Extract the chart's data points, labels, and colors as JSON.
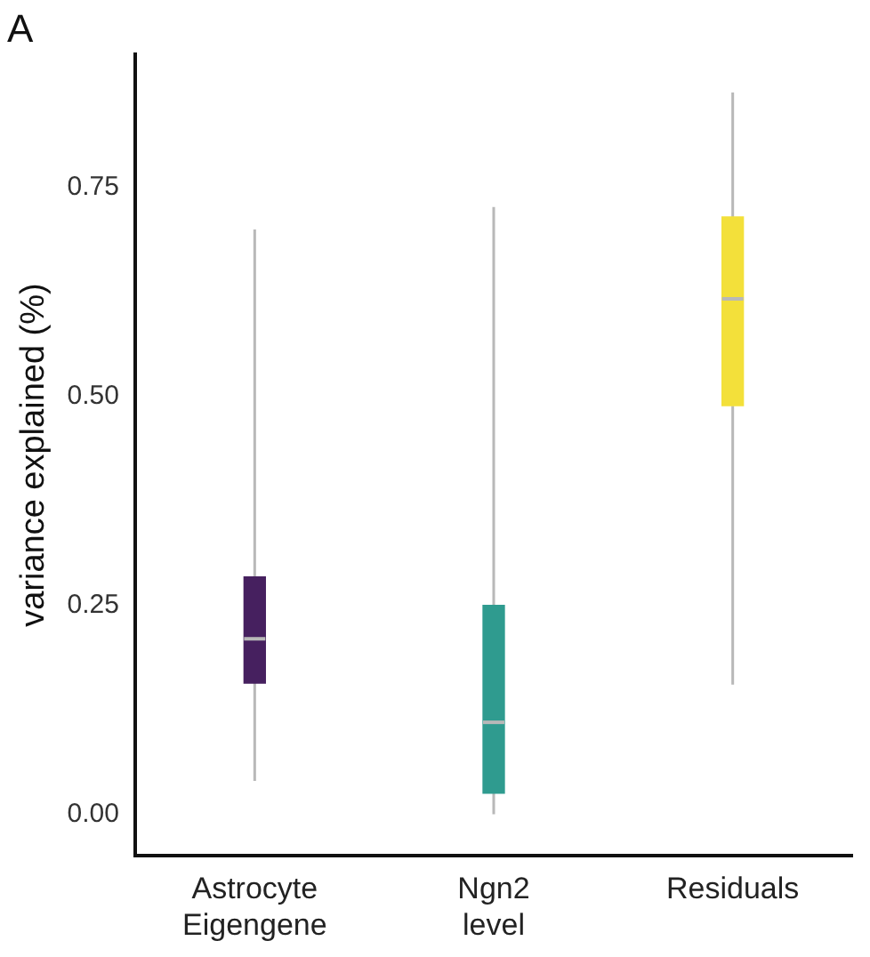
{
  "chart_data": {
    "type": "box",
    "title": "A",
    "ylabel": "variance explained (%)",
    "categories": [
      "Astrocyte Eigengene",
      "Ngn2 level",
      "Residuals"
    ],
    "boxes": [
      {
        "low": 0.04,
        "q1": 0.157,
        "median": 0.21,
        "q3": 0.284,
        "high": 0.7
      },
      {
        "low": 0.0,
        "q1": 0.025,
        "median": 0.11,
        "q3": 0.25,
        "high": 0.727
      },
      {
        "low": 0.155,
        "q1": 0.489,
        "median": 0.617,
        "q3": 0.715,
        "high": 0.864
      }
    ],
    "colors": [
      "#46205f",
      "#2f9b8f",
      "#f3e03a"
    ],
    "ylim": [
      -0.05,
      0.91
    ],
    "yticks": [
      {
        "value": 0,
        "label": "0.00"
      },
      {
        "value": 0.25,
        "label": "0.25"
      },
      {
        "value": 0.5,
        "label": "0.50"
      },
      {
        "value": 0.75,
        "label": "0.75"
      }
    ],
    "grid": false,
    "legend": false
  }
}
